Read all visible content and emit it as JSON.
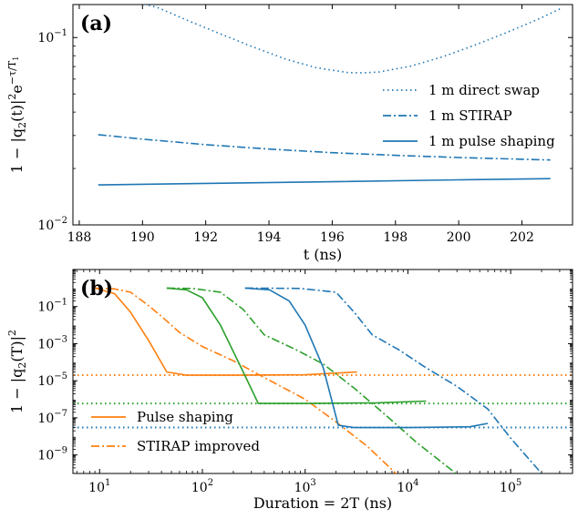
{
  "colors": {
    "blue": "#1f77b4",
    "orange": "#ff7f0e",
    "green": "#2ca02c"
  },
  "chart_data": [
    {
      "type": "line",
      "panel_label": "(a)",
      "xlabel": "t (ns)",
      "ylabel_parts": [
        "1 − |q",
        "2",
        "(t)|",
        "2",
        "e",
        "−τ/T",
        "1"
      ],
      "y_scale": "log",
      "xlim": [
        187.8,
        203.6
      ],
      "ylim": [
        0.01,
        0.15
      ],
      "x_ticks": [
        188,
        190,
        192,
        194,
        196,
        198,
        200,
        202
      ],
      "x_tick_labels": [
        "188",
        "190",
        "192",
        "194",
        "196",
        "198",
        "200",
        "202"
      ],
      "y_ticks": [
        0.1,
        0.01
      ],
      "y_tick_labels": [
        [
          "10",
          "−1"
        ],
        [
          "10",
          "−2"
        ]
      ],
      "legend_position": "right",
      "series": [
        {
          "name": "1 m direct swap",
          "style": "dotted",
          "color": "#1f77b4",
          "x": [
            189.5,
            190.5,
            191.5,
            192.5,
            193.5,
            194.5,
            195.5,
            196.5,
            197.0,
            197.5,
            198.5,
            199.5,
            200.5,
            201.5,
            202.5,
            203.2
          ],
          "y": [
            0.16,
            0.144,
            0.122,
            0.104,
            0.089,
            0.077,
            0.069,
            0.065,
            0.0648,
            0.0655,
            0.0705,
            0.079,
            0.091,
            0.106,
            0.125,
            0.142
          ]
        },
        {
          "name": "1 m STIRAP",
          "style": "dashdot",
          "color": "#1f77b4",
          "x": [
            188.6,
            190,
            192,
            194,
            196,
            198,
            200,
            202,
            202.9
          ],
          "y": [
            0.0303,
            0.0287,
            0.0268,
            0.0254,
            0.0243,
            0.0235,
            0.0229,
            0.0224,
            0.0222
          ]
        },
        {
          "name": "1 m pulse shaping",
          "style": "solid",
          "color": "#1f77b4",
          "x": [
            188.6,
            192,
            196,
            200,
            202.9
          ],
          "y": [
            0.01635,
            0.01665,
            0.017,
            0.0174,
            0.01765
          ]
        }
      ]
    },
    {
      "type": "line",
      "panel_label": "(b)",
      "xlabel": "Duration = 2T (ns)",
      "ylabel_parts": [
        "1 − |q",
        "2",
        "(T)|",
        "2"
      ],
      "x_scale": "log",
      "y_scale": "log",
      "xlim": [
        5.5,
        400000
      ],
      "ylim": [
        1e-10,
        10
      ],
      "x_ticks": [
        10,
        100,
        1000,
        10000,
        100000
      ],
      "x_tick_labels": [
        [
          "10",
          "1"
        ],
        [
          "10",
          "2"
        ],
        [
          "10",
          "3"
        ],
        [
          "10",
          "4"
        ],
        [
          "10",
          "5"
        ]
      ],
      "y_ticks": [
        0.1,
        0.001,
        1e-05,
        1e-07,
        1e-09
      ],
      "y_tick_labels": [
        [
          "10",
          "−1"
        ],
        [
          "10",
          "−3"
        ],
        [
          "10",
          "−5"
        ],
        [
          "10",
          "−7"
        ],
        [
          "10",
          "−9"
        ]
      ],
      "legend_position": "bottom-left",
      "series": [
        {
          "name": "Pulse shaping",
          "style": "solid",
          "color": "#ff7f0e",
          "x": [
            9,
            14,
            20,
            30,
            45,
            70,
            200,
            1000,
            3200
          ],
          "y": [
            1.0,
            0.5,
            0.05,
            0.0015,
            3e-05,
            2e-05,
            2e-05,
            2.1e-05,
            3e-05
          ]
        },
        {
          "name": "STIRAP improved",
          "style": "dashdot",
          "color": "#ff7f0e",
          "x": [
            9,
            14,
            20,
            28,
            40,
            60,
            100,
            200,
            400,
            1000,
            2000,
            4000,
            8000
          ],
          "y": [
            1.0,
            0.9,
            0.6,
            0.15,
            0.03,
            0.004,
            0.0007,
            0.00012,
            1.5e-05,
            1e-06,
            6e-08,
            3e-09,
            8e-11
          ]
        },
        {
          "style": "solid",
          "color": "#2ca02c",
          "x": [
            45,
            70,
            100,
            150,
            250,
            350,
            1000,
            5000,
            15000
          ],
          "y": [
            1.0,
            0.8,
            0.3,
            0.01,
            3e-05,
            6e-07,
            6e-07,
            6.5e-07,
            8e-07
          ]
        },
        {
          "style": "dashdot",
          "color": "#2ca02c",
          "x": [
            45,
            80,
            150,
            250,
            400,
            800,
            1500,
            3000,
            6000,
            12000,
            30000
          ],
          "y": [
            1.0,
            0.95,
            0.6,
            0.07,
            0.003,
            0.0005,
            8e-05,
            4e-06,
            1.5e-07,
            5e-09,
            9e-11
          ]
        },
        {
          "style": "solid",
          "color": "#1f77b4",
          "x": [
            260,
            450,
            700,
            1000,
            1500,
            2100,
            3000,
            10000,
            40000,
            60000
          ],
          "y": [
            1.0,
            0.8,
            0.2,
            0.01,
            5e-05,
            4e-08,
            3e-08,
            3e-08,
            3.3e-08,
            5e-08
          ]
        },
        {
          "style": "dashdot",
          "color": "#1f77b4",
          "x": [
            260,
            900,
            2000,
            3000,
            4500,
            8000,
            15000,
            30000,
            60000,
            100000,
            200000
          ],
          "y": [
            1.0,
            0.95,
            0.6,
            0.05,
            0.003,
            0.0005,
            5e-05,
            5e-06,
            3e-07,
            8e-09,
            1e-10
          ]
        }
      ],
      "reference_lines": [
        {
          "color": "#ff7f0e",
          "style": "dotted",
          "y": 2e-05
        },
        {
          "color": "#2ca02c",
          "style": "dotted",
          "y": 6e-07
        },
        {
          "color": "#1f77b4",
          "style": "dotted",
          "y": 3e-08
        }
      ]
    }
  ]
}
